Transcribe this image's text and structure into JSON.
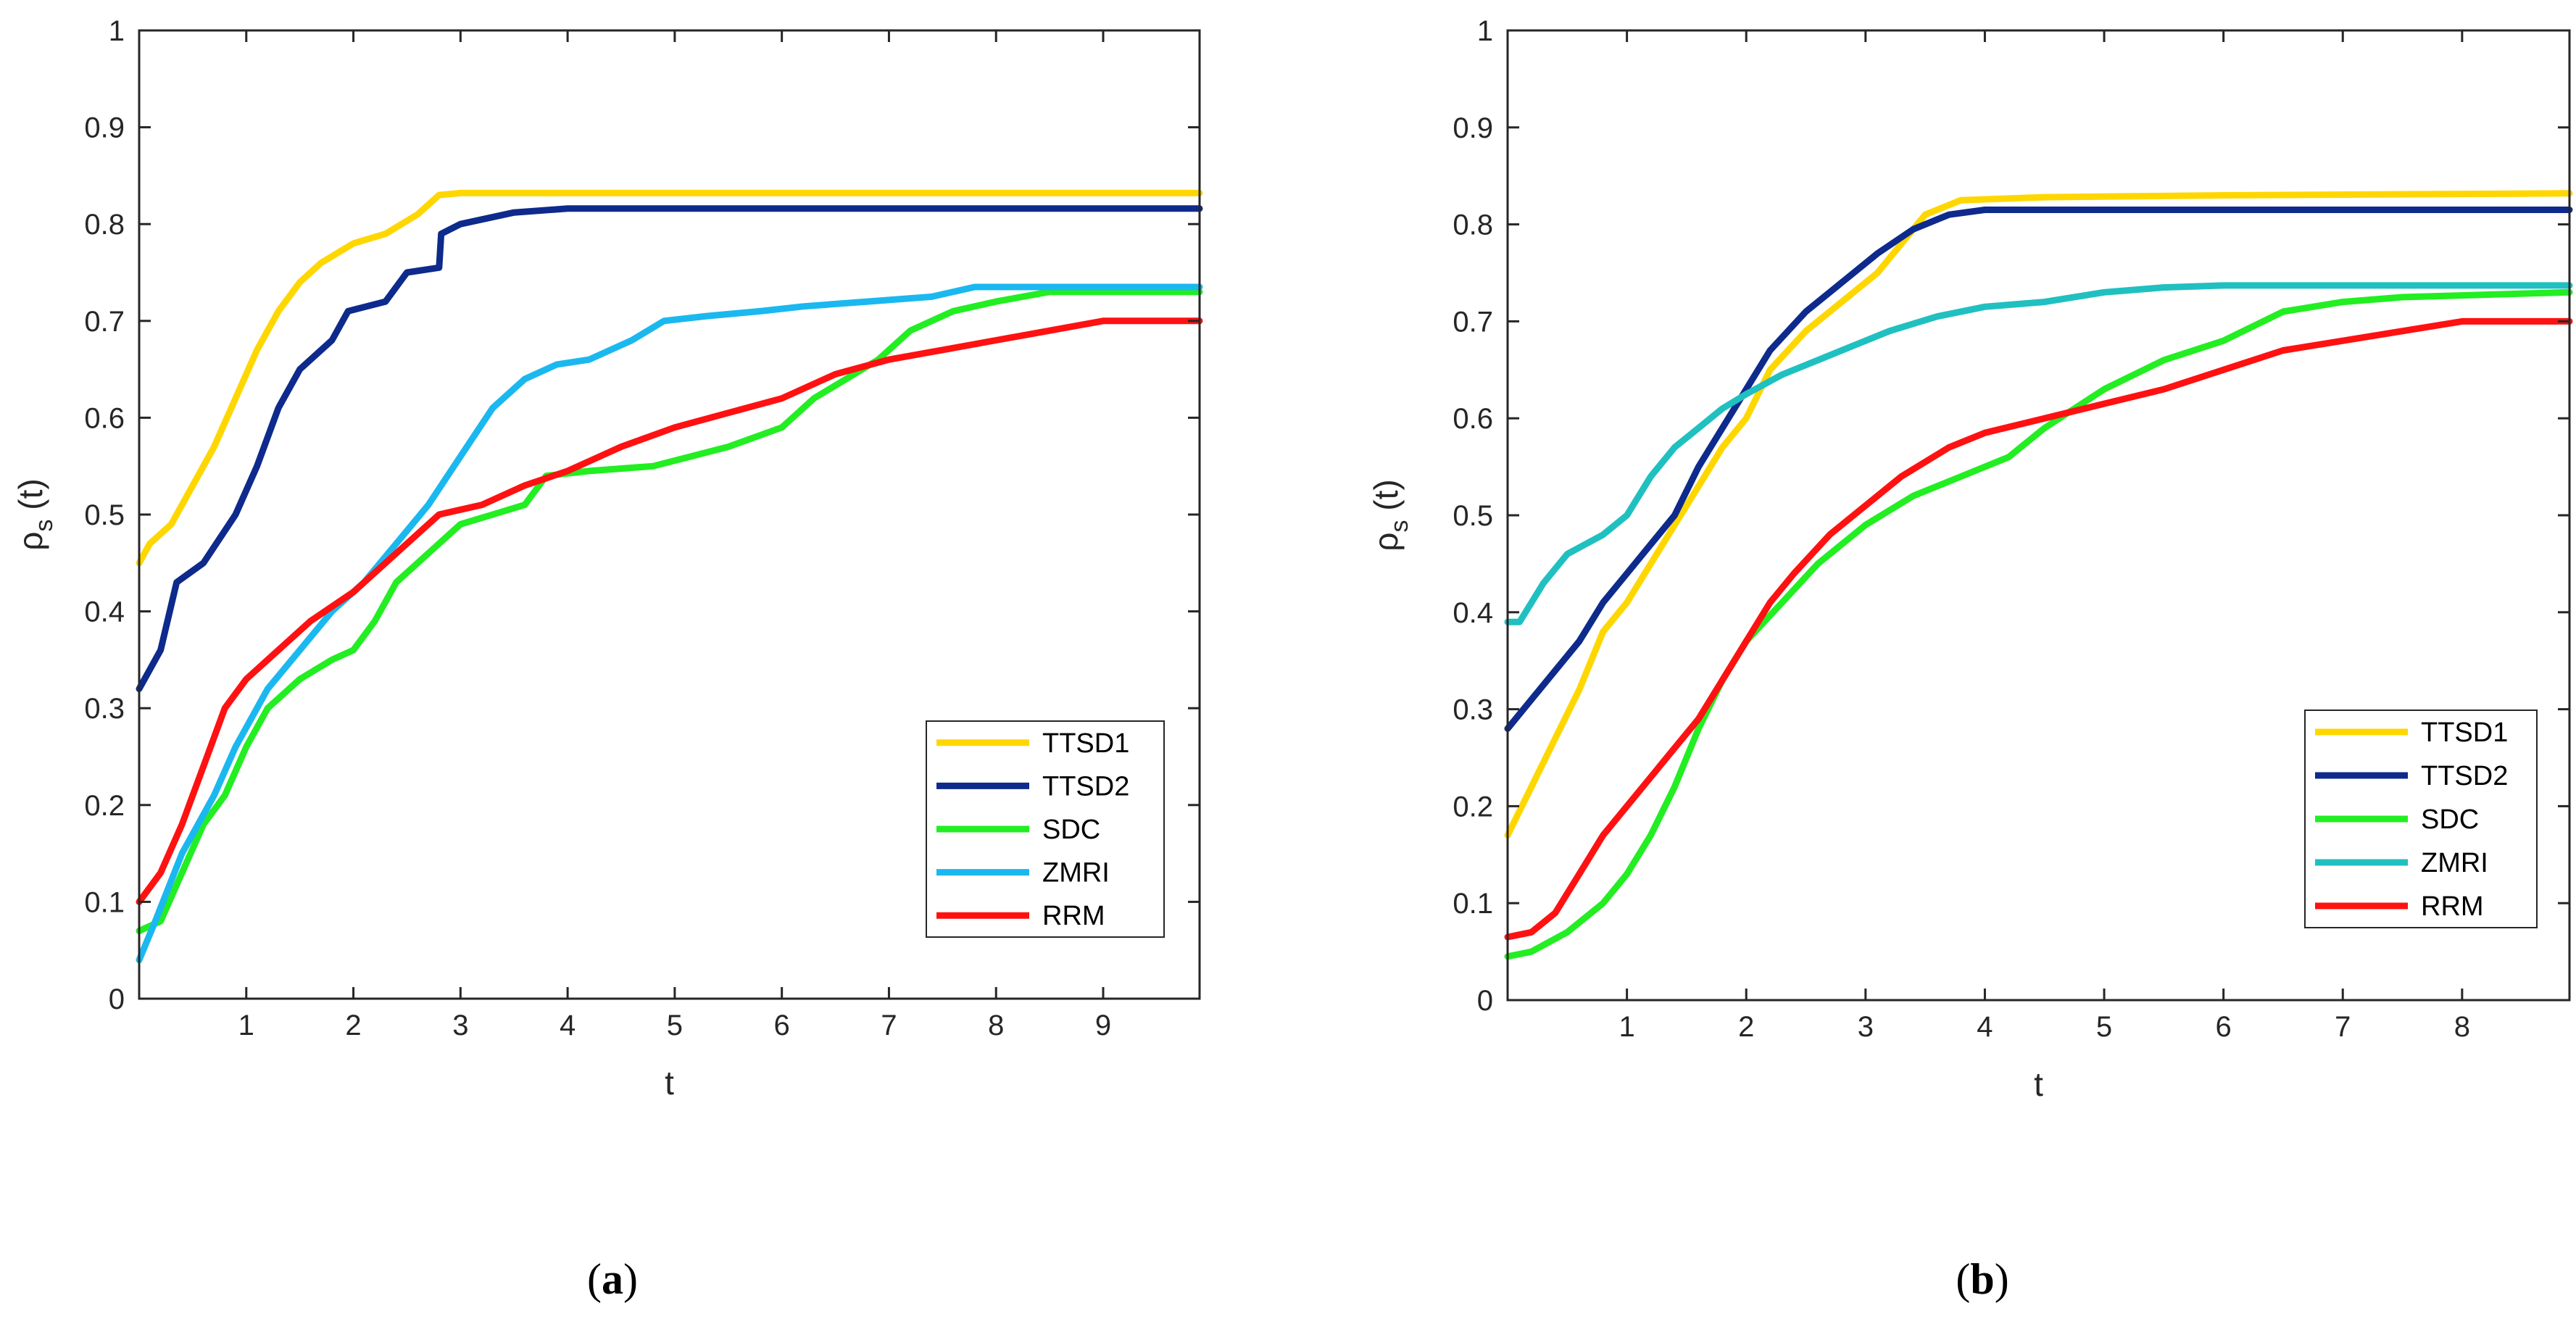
{
  "chart_data": [
    {
      "type": "line",
      "panel": "a",
      "caption_open": "(",
      "caption_letter": "a",
      "caption_close": ")",
      "xlabel": "t",
      "ylabel_main": "ρ",
      "ylabel_sub": "s",
      "ylabel_tail": " (t)",
      "xlim": [
        0.0,
        9.9
      ],
      "ylim": [
        0,
        1
      ],
      "xticks": [
        1,
        2,
        3,
        4,
        5,
        6,
        7,
        8,
        9
      ],
      "yticks": [
        0,
        0.1,
        0.2,
        0.3,
        0.4,
        0.5,
        0.6,
        0.7,
        0.8,
        0.9,
        1
      ],
      "ytick_labels": [
        "0",
        "0.1",
        "0.2",
        "0.3",
        "0.4",
        "0.5",
        "0.6",
        "0.7",
        "0.8",
        "0.9",
        "1"
      ],
      "legend_position": "bottom-right",
      "series": [
        {
          "name": "TTSD1",
          "color": "#FFD700",
          "points": [
            [
              0,
              0.45
            ],
            [
              0.1,
              0.47
            ],
            [
              0.3,
              0.49
            ],
            [
              0.5,
              0.53
            ],
            [
              0.7,
              0.57
            ],
            [
              0.9,
              0.62
            ],
            [
              1.1,
              0.67
            ],
            [
              1.3,
              0.71
            ],
            [
              1.5,
              0.74
            ],
            [
              1.7,
              0.76
            ],
            [
              2.0,
              0.78
            ],
            [
              2.3,
              0.79
            ],
            [
              2.6,
              0.81
            ],
            [
              2.8,
              0.83
            ],
            [
              3.0,
              0.832
            ],
            [
              9.9,
              0.832
            ]
          ]
        },
        {
          "name": "TTSD2",
          "color": "#0D2A8C",
          "points": [
            [
              0,
              0.32
            ],
            [
              0.2,
              0.36
            ],
            [
              0.35,
              0.43
            ],
            [
              0.6,
              0.45
            ],
            [
              0.9,
              0.5
            ],
            [
              1.1,
              0.55
            ],
            [
              1.3,
              0.61
            ],
            [
              1.5,
              0.65
            ],
            [
              1.8,
              0.68
            ],
            [
              1.95,
              0.71
            ],
            [
              2.3,
              0.72
            ],
            [
              2.5,
              0.75
            ],
            [
              2.8,
              0.755
            ],
            [
              2.82,
              0.79
            ],
            [
              3.0,
              0.8
            ],
            [
              3.5,
              0.812
            ],
            [
              4.0,
              0.816
            ],
            [
              9.9,
              0.816
            ]
          ]
        },
        {
          "name": "SDC",
          "color": "#22EE22",
          "points": [
            [
              0,
              0.07
            ],
            [
              0.2,
              0.08
            ],
            [
              0.4,
              0.13
            ],
            [
              0.6,
              0.18
            ],
            [
              0.8,
              0.21
            ],
            [
              1.0,
              0.26
            ],
            [
              1.2,
              0.3
            ],
            [
              1.5,
              0.33
            ],
            [
              1.8,
              0.35
            ],
            [
              2.0,
              0.36
            ],
            [
              2.2,
              0.39
            ],
            [
              2.4,
              0.43
            ],
            [
              2.7,
              0.46
            ],
            [
              3.0,
              0.49
            ],
            [
              3.3,
              0.5
            ],
            [
              3.6,
              0.51
            ],
            [
              3.8,
              0.54
            ],
            [
              4.2,
              0.545
            ],
            [
              4.8,
              0.55
            ],
            [
              5.5,
              0.57
            ],
            [
              6.0,
              0.59
            ],
            [
              6.3,
              0.62
            ],
            [
              6.6,
              0.64
            ],
            [
              6.9,
              0.66
            ],
            [
              7.2,
              0.69
            ],
            [
              7.6,
              0.71
            ],
            [
              8.0,
              0.72
            ],
            [
              8.5,
              0.73
            ],
            [
              9.9,
              0.73
            ]
          ]
        },
        {
          "name": "ZMRI",
          "color": "#1BB8F0",
          "points": [
            [
              0,
              0.04
            ],
            [
              0.15,
              0.08
            ],
            [
              0.4,
              0.15
            ],
            [
              0.7,
              0.21
            ],
            [
              0.9,
              0.26
            ],
            [
              1.2,
              0.32
            ],
            [
              1.5,
              0.36
            ],
            [
              1.8,
              0.4
            ],
            [
              2.1,
              0.43
            ],
            [
              2.4,
              0.47
            ],
            [
              2.7,
              0.51
            ],
            [
              3.0,
              0.56
            ],
            [
              3.3,
              0.61
            ],
            [
              3.6,
              0.64
            ],
            [
              3.9,
              0.655
            ],
            [
              4.2,
              0.66
            ],
            [
              4.6,
              0.68
            ],
            [
              4.9,
              0.7
            ],
            [
              5.3,
              0.705
            ],
            [
              5.8,
              0.71
            ],
            [
              6.2,
              0.715
            ],
            [
              6.8,
              0.72
            ],
            [
              7.4,
              0.725
            ],
            [
              7.8,
              0.735
            ],
            [
              9.9,
              0.735
            ]
          ]
        },
        {
          "name": "RRM",
          "color": "#FF1111",
          "points": [
            [
              0,
              0.1
            ],
            [
              0.2,
              0.13
            ],
            [
              0.4,
              0.18
            ],
            [
              0.6,
              0.24
            ],
            [
              0.8,
              0.3
            ],
            [
              1.0,
              0.33
            ],
            [
              1.3,
              0.36
            ],
            [
              1.6,
              0.39
            ],
            [
              2.0,
              0.42
            ],
            [
              2.4,
              0.46
            ],
            [
              2.8,
              0.5
            ],
            [
              3.2,
              0.51
            ],
            [
              3.6,
              0.53
            ],
            [
              4.0,
              0.545
            ],
            [
              4.5,
              0.57
            ],
            [
              5.0,
              0.59
            ],
            [
              5.5,
              0.605
            ],
            [
              6.0,
              0.62
            ],
            [
              6.5,
              0.645
            ],
            [
              7.0,
              0.66
            ],
            [
              7.5,
              0.67
            ],
            [
              8.0,
              0.68
            ],
            [
              8.5,
              0.69
            ],
            [
              9.0,
              0.7
            ],
            [
              9.9,
              0.7
            ]
          ]
        }
      ]
    },
    {
      "type": "line",
      "panel": "b",
      "caption_open": "(",
      "caption_letter": "b",
      "caption_close": ")",
      "xlabel": "t",
      "ylabel_main": "ρ",
      "ylabel_sub": "s",
      "ylabel_tail": " (t)",
      "xlim": [
        0.0,
        8.9
      ],
      "ylim": [
        0,
        1
      ],
      "xticks": [
        1,
        2,
        3,
        4,
        5,
        6,
        7,
        8
      ],
      "yticks": [
        0,
        0.1,
        0.2,
        0.3,
        0.4,
        0.5,
        0.6,
        0.7,
        0.8,
        0.9,
        1
      ],
      "ytick_labels": [
        "0",
        "0.1",
        "0.2",
        "0.3",
        "0.4",
        "0.5",
        "0.6",
        "0.7",
        "0.8",
        "0.9",
        "1"
      ],
      "legend_position": "bottom-right",
      "series": [
        {
          "name": "TTSD1",
          "color": "#FFD700",
          "points": [
            [
              0,
              0.17
            ],
            [
              0.2,
              0.22
            ],
            [
              0.4,
              0.27
            ],
            [
              0.6,
              0.32
            ],
            [
              0.8,
              0.38
            ],
            [
              1.0,
              0.41
            ],
            [
              1.2,
              0.45
            ],
            [
              1.4,
              0.49
            ],
            [
              1.6,
              0.53
            ],
            [
              1.8,
              0.57
            ],
            [
              2.0,
              0.6
            ],
            [
              2.2,
              0.65
            ],
            [
              2.5,
              0.69
            ],
            [
              2.8,
              0.72
            ],
            [
              3.1,
              0.75
            ],
            [
              3.3,
              0.78
            ],
            [
              3.5,
              0.81
            ],
            [
              3.8,
              0.825
            ],
            [
              4.5,
              0.828
            ],
            [
              6.0,
              0.83
            ],
            [
              8.9,
              0.832
            ]
          ]
        },
        {
          "name": "TTSD2",
          "color": "#0D2A8C",
          "points": [
            [
              0,
              0.28
            ],
            [
              0.2,
              0.31
            ],
            [
              0.4,
              0.34
            ],
            [
              0.6,
              0.37
            ],
            [
              0.8,
              0.41
            ],
            [
              1.0,
              0.44
            ],
            [
              1.2,
              0.47
            ],
            [
              1.4,
              0.5
            ],
            [
              1.6,
              0.55
            ],
            [
              1.8,
              0.59
            ],
            [
              2.0,
              0.63
            ],
            [
              2.2,
              0.67
            ],
            [
              2.5,
              0.71
            ],
            [
              2.8,
              0.74
            ],
            [
              3.1,
              0.77
            ],
            [
              3.4,
              0.795
            ],
            [
              3.7,
              0.81
            ],
            [
              4.0,
              0.815
            ],
            [
              8.9,
              0.815
            ]
          ]
        },
        {
          "name": "SDC",
          "color": "#22EE22",
          "points": [
            [
              0,
              0.045
            ],
            [
              0.2,
              0.05
            ],
            [
              0.5,
              0.07
            ],
            [
              0.8,
              0.1
            ],
            [
              1.0,
              0.13
            ],
            [
              1.2,
              0.17
            ],
            [
              1.4,
              0.22
            ],
            [
              1.6,
              0.28
            ],
            [
              1.8,
              0.33
            ],
            [
              2.0,
              0.37
            ],
            [
              2.3,
              0.41
            ],
            [
              2.6,
              0.45
            ],
            [
              3.0,
              0.49
            ],
            [
              3.4,
              0.52
            ],
            [
              3.8,
              0.54
            ],
            [
              4.2,
              0.56
            ],
            [
              4.5,
              0.59
            ],
            [
              5.0,
              0.63
            ],
            [
              5.5,
              0.66
            ],
            [
              6.0,
              0.68
            ],
            [
              6.5,
              0.71
            ],
            [
              7.0,
              0.72
            ],
            [
              7.5,
              0.725
            ],
            [
              8.9,
              0.73
            ]
          ]
        },
        {
          "name": "ZMRI",
          "color": "#20C0C0",
          "points": [
            [
              0,
              0.39
            ],
            [
              0.1,
              0.39
            ],
            [
              0.3,
              0.43
            ],
            [
              0.5,
              0.46
            ],
            [
              0.8,
              0.48
            ],
            [
              1.0,
              0.5
            ],
            [
              1.2,
              0.54
            ],
            [
              1.4,
              0.57
            ],
            [
              1.6,
              0.59
            ],
            [
              1.8,
              0.61
            ],
            [
              2.0,
              0.625
            ],
            [
              2.3,
              0.645
            ],
            [
              2.6,
              0.66
            ],
            [
              2.9,
              0.675
            ],
            [
              3.2,
              0.69
            ],
            [
              3.6,
              0.705
            ],
            [
              4.0,
              0.715
            ],
            [
              4.5,
              0.72
            ],
            [
              5.0,
              0.73
            ],
            [
              5.5,
              0.735
            ],
            [
              6.0,
              0.737
            ],
            [
              8.9,
              0.737
            ]
          ]
        },
        {
          "name": "RRM",
          "color": "#FF1111",
          "points": [
            [
              0,
              0.065
            ],
            [
              0.2,
              0.07
            ],
            [
              0.4,
              0.09
            ],
            [
              0.6,
              0.13
            ],
            [
              0.8,
              0.17
            ],
            [
              1.0,
              0.2
            ],
            [
              1.2,
              0.23
            ],
            [
              1.4,
              0.26
            ],
            [
              1.6,
              0.29
            ],
            [
              1.8,
              0.33
            ],
            [
              2.0,
              0.37
            ],
            [
              2.2,
              0.41
            ],
            [
              2.4,
              0.44
            ],
            [
              2.7,
              0.48
            ],
            [
              3.0,
              0.51
            ],
            [
              3.3,
              0.54
            ],
            [
              3.7,
              0.57
            ],
            [
              4.0,
              0.585
            ],
            [
              4.5,
              0.6
            ],
            [
              5.0,
              0.615
            ],
            [
              5.5,
              0.63
            ],
            [
              6.0,
              0.65
            ],
            [
              6.5,
              0.67
            ],
            [
              7.0,
              0.68
            ],
            [
              7.5,
              0.69
            ],
            [
              8.0,
              0.7
            ],
            [
              8.9,
              0.7
            ]
          ]
        }
      ]
    }
  ]
}
